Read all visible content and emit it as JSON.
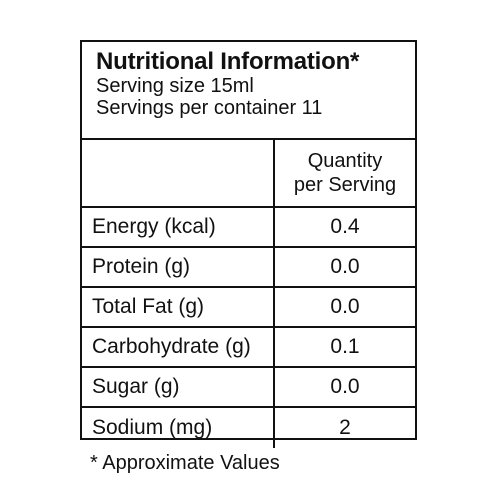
{
  "header": {
    "title": "Nutritional Information*",
    "serving_size": "Serving size 15ml",
    "servings_per_container": "Servings per container 11"
  },
  "table": {
    "column_header_line1": "Quantity",
    "column_header_line2": "per Serving",
    "rows": [
      {
        "label": "Energy (kcal)",
        "value": "0.4"
      },
      {
        "label": "Protein (g)",
        "value": "0.0"
      },
      {
        "label": "Total Fat (g)",
        "value": "0.0"
      },
      {
        "label": "Carbohydrate (g)",
        "value": "0.1"
      },
      {
        "label": "Sugar (g)",
        "value": "0.0"
      },
      {
        "label": "Sodium (mg)",
        "value": "2"
      }
    ]
  },
  "footnote": "* Approximate Values"
}
